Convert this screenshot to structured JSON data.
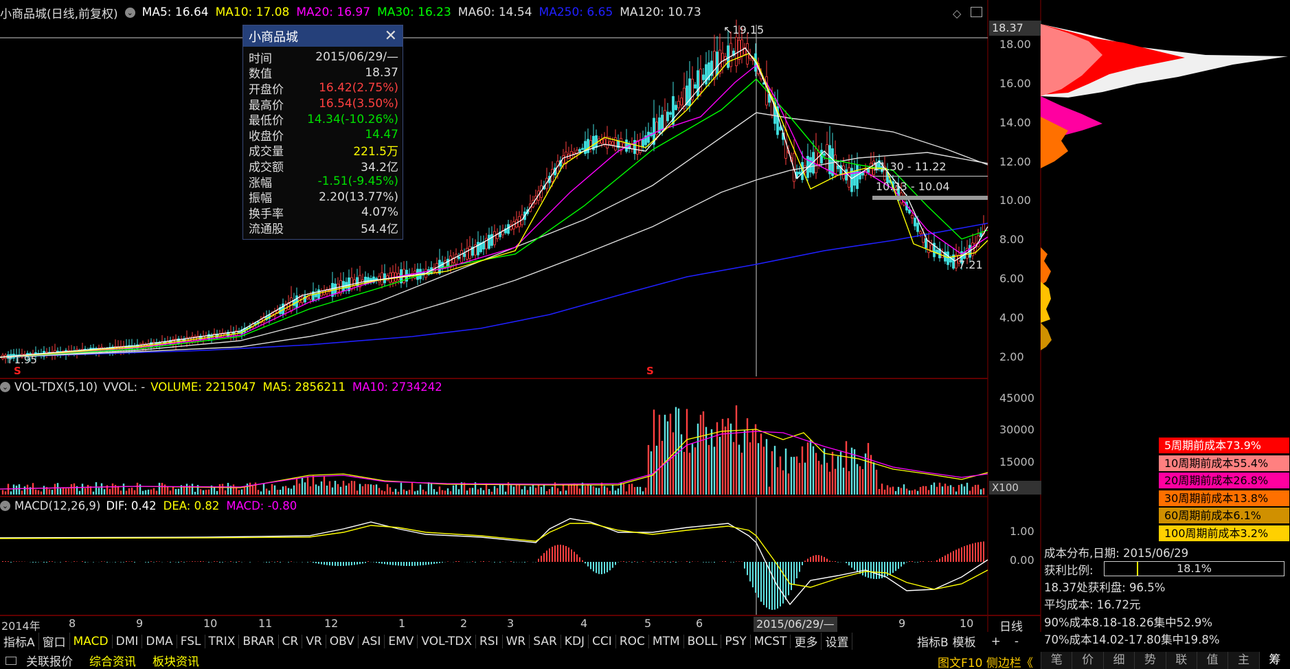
{
  "header": {
    "title": "小商品城(日线,前复权)",
    "ma": [
      {
        "label": "MA5: 16.64",
        "color": "#ffffff"
      },
      {
        "label": "MA10: 17.08",
        "color": "#ffff00"
      },
      {
        "label": "MA20: 16.97",
        "color": "#ff00ff"
      },
      {
        "label": "MA30: 16.23",
        "color": "#00ff00"
      },
      {
        "label": "MA60: 14.54",
        "color": "#dddddd"
      },
      {
        "label": "MA250: 6.65",
        "color": "#2020ff"
      },
      {
        "label": "MA120: 10.73",
        "color": "#dddddd"
      }
    ]
  },
  "price_axis": {
    "ticks": [
      "18.00",
      "16.00",
      "14.00",
      "12.00",
      "10.00",
      "8.00",
      "6.00",
      "4.00",
      "2.00"
    ],
    "current": "18.37"
  },
  "annotations": {
    "high": "19.15",
    "low_start": "1.95",
    "low_recent": "7.21",
    "zone1": "11.30 - 11.22",
    "zone2": "10.33 - 10.04",
    "s_marker": "S"
  },
  "popup": {
    "title": "小商品城",
    "rows": [
      {
        "k": "时间",
        "v": "2015/06/29/—",
        "color": "#dddddd"
      },
      {
        "k": "数值",
        "v": "18.37",
        "color": "#dddddd"
      },
      {
        "k": "开盘价",
        "v": "16.42(2.75%)",
        "color": "#ff4040"
      },
      {
        "k": "最高价",
        "v": "16.54(3.50%)",
        "color": "#ff4040"
      },
      {
        "k": "最低价",
        "v": "14.34(-10.26%)",
        "color": "#00e000"
      },
      {
        "k": "收盘价",
        "v": "14.47",
        "color": "#00e000"
      },
      {
        "k": "成交量",
        "v": "221.5万",
        "color": "#ffff00"
      },
      {
        "k": "成交额",
        "v": "34.2亿",
        "color": "#dddddd"
      },
      {
        "k": "涨幅",
        "v": "-1.51(-9.45%)",
        "color": "#00e000"
      },
      {
        "k": "振幅",
        "v": "2.20(13.77%)",
        "color": "#dddddd"
      },
      {
        "k": "换手率",
        "v": "4.07%",
        "color": "#dddddd"
      },
      {
        "k": "流通股",
        "v": "54.4亿",
        "color": "#dddddd"
      }
    ]
  },
  "vol_panel": {
    "title": "VOL-TDX(5,10)",
    "vvol": "VVOL: -",
    "volume": "VOLUME: 2215047",
    "ma5": "MA5: 2856211",
    "ma10": "MA10: 2734242",
    "ticks": [
      "45000",
      "30000",
      "15000"
    ],
    "unit": "X100"
  },
  "macd_panel": {
    "title": "MACD(12,26,9)",
    "dif": "DIF: 0.42",
    "dea": "DEA: 0.82",
    "macd": "MACD: -0.80",
    "ticks": [
      "1.00",
      "0.00"
    ]
  },
  "date_axis": {
    "labels": [
      "2014年",
      "8",
      "9",
      "10",
      "11",
      "12",
      "1",
      "2",
      "3",
      "4",
      "5",
      "6",
      "9",
      "10"
    ],
    "cursor": "2015/06/29/—",
    "period": "日线"
  },
  "indicator_tabs": [
    "指标A",
    "窗口",
    "MACD",
    "DMI",
    "DMA",
    "FSL",
    "TRIX",
    "BRAR",
    "CR",
    "VR",
    "OBV",
    "ASI",
    "EMV",
    "VOL-TDX",
    "RSI",
    "WR",
    "SAR",
    "KDJ",
    "CCI",
    "ROC",
    "MTM",
    "BOLL",
    "PSY",
    "MCST",
    "更多",
    "设置"
  ],
  "right_tabs_top": [
    "指标B",
    "模板",
    "+",
    "-"
  ],
  "bottom_links": [
    "关联报价",
    "综合资讯",
    "板块资讯"
  ],
  "bottom_right": "图文F10 侧边栏《",
  "side_tabs": [
    "笔",
    "价",
    "细",
    "势",
    "联",
    "值",
    "主",
    "筹"
  ],
  "cost_legend": [
    {
      "label": "5周期前成本73.9%",
      "bg": "#ff0000",
      "fg": "#ffffff"
    },
    {
      "label": "10周期前成本55.4%",
      "bg": "#ff8080",
      "fg": "#000000"
    },
    {
      "label": "20周期前成本26.8%",
      "bg": "#ff00a0",
      "fg": "#000000"
    },
    {
      "label": "30周期前成本13.8%",
      "bg": "#ff7000",
      "fg": "#000000"
    },
    {
      "label": "60周期前成本6.1%",
      "bg": "#d09000",
      "fg": "#000000"
    },
    {
      "label": "100周期前成本3.2%",
      "bg": "#ffd000",
      "fg": "#000000"
    }
  ],
  "cost_info": {
    "date_line": "成本分布,日期: 2015/06/29",
    "profit_label": "获利比例:",
    "profit_value": "18.1%",
    "profit_fraction": 0.181,
    "line2": "18.37处获利盘: 96.5%",
    "line3": "平均成本: 16.72元",
    "line4": "90%成本8.18-18.26集中52.9%",
    "line5": "70%成本14.02-17.80集中19.8%"
  }
}
